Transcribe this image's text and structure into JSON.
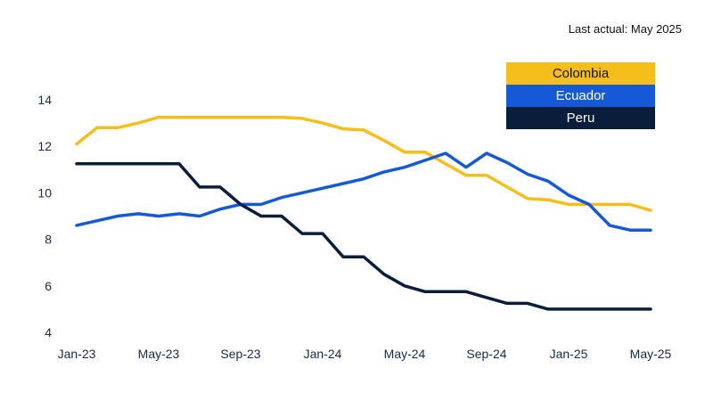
{
  "note": "Last actual: May 2025",
  "chart_data": {
    "type": "line",
    "title": "",
    "xlabel": "",
    "ylabel": "",
    "ylim": [
      4,
      14
    ],
    "yticks": [
      4,
      6,
      8,
      10,
      12,
      14
    ],
    "x_tick_labels": [
      "Jan-23",
      "May-23",
      "Sep-23",
      "Jan-24",
      "May-24",
      "Sep-24",
      "Jan-25",
      "May-25"
    ],
    "x": [
      "Jan-23",
      "Feb-23",
      "Mar-23",
      "Apr-23",
      "May-23",
      "Jun-23",
      "Jul-23",
      "Aug-23",
      "Sep-23",
      "Oct-23",
      "Nov-23",
      "Dec-23",
      "Jan-24",
      "Feb-24",
      "Mar-24",
      "Apr-24",
      "May-24",
      "Jun-24",
      "Jul-24",
      "Aug-24",
      "Sep-24",
      "Oct-24",
      "Nov-24",
      "Dec-24",
      "Jan-25",
      "Feb-25",
      "Mar-25",
      "Apr-25",
      "May-25"
    ],
    "legend_position": "top-right",
    "series": [
      {
        "name": "Colombia",
        "color": "#F6BE1A",
        "values": [
          12.1,
          12.8,
          12.8,
          13.0,
          13.25,
          13.25,
          13.25,
          13.25,
          13.25,
          13.25,
          13.25,
          13.2,
          13.0,
          12.75,
          12.7,
          12.25,
          11.75,
          11.75,
          11.25,
          10.75,
          10.75,
          10.25,
          9.75,
          9.7,
          9.5,
          9.5,
          9.5,
          9.5,
          9.25
        ]
      },
      {
        "name": "Ecuador",
        "color": "#1659D6",
        "values": [
          8.6,
          8.8,
          9.0,
          9.1,
          9.0,
          9.1,
          9.0,
          9.3,
          9.5,
          9.5,
          9.8,
          10.0,
          10.2,
          10.4,
          10.6,
          10.9,
          11.1,
          11.4,
          11.7,
          11.1,
          11.7,
          11.3,
          10.8,
          10.5,
          9.9,
          9.5,
          8.6,
          8.4,
          8.4
        ]
      },
      {
        "name": "Peru",
        "color": "#0A1E3C",
        "values": [
          11.25,
          11.25,
          11.25,
          11.25,
          11.25,
          11.25,
          10.25,
          10.25,
          9.5,
          9.0,
          9.0,
          8.25,
          8.25,
          7.25,
          7.25,
          6.5,
          6.0,
          5.75,
          5.75,
          5.75,
          5.5,
          5.25,
          5.25,
          5.0,
          5.0,
          5.0,
          5.0,
          5.0,
          5.0
        ]
      }
    ]
  }
}
